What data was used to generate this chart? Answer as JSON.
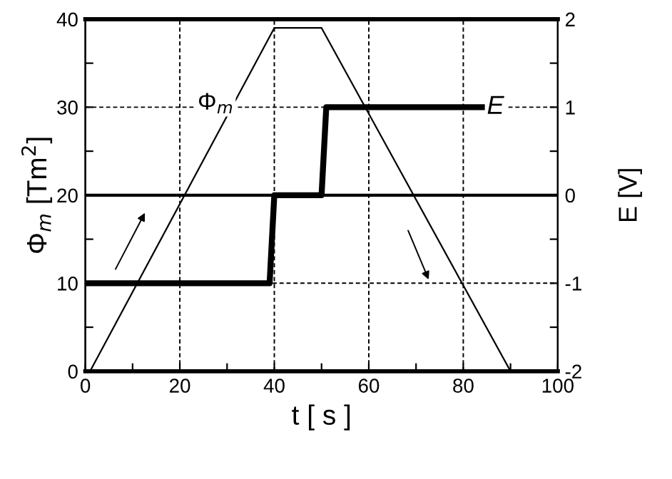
{
  "chart_data": {
    "type": "line",
    "xlabel": "t [ s ]",
    "ylabel": "Φ$_{m}$ [Tm$^{2}$]",
    "y2label": "E [V]",
    "series": [
      {
        "name": "Φ$_{m}$",
        "color": "#000000",
        "x": [
          1,
          40,
          50,
          90
        ],
        "values": [
          0,
          39,
          39,
          0
        ]
      },
      {
        "name": "E",
        "color": "#000000",
        "axis": "y2",
        "type": "step",
        "x": [
          0,
          39,
          40,
          50,
          51,
          84
        ],
        "values": [
          -1,
          -1,
          0,
          0,
          1,
          1
        ]
      }
    ],
    "xlim": [
      0,
      100
    ],
    "xticks": [
      0,
      {
        "value": 10,
        "label": null
      },
      20,
      {
        "value": 30,
        "label": null
      },
      40,
      {
        "value": 50,
        "label": null
      },
      60,
      {
        "value": 70,
        "label": null
      },
      80,
      {
        "value": 90,
        "label": null
      },
      100
    ],
    "ylim": [
      0,
      40
    ],
    "yticks": [
      0,
      {
        "value": 5,
        "label": null
      },
      10,
      {
        "value": 15,
        "label": null
      },
      20,
      {
        "value": 25,
        "label": null
      },
      30,
      {
        "value": 35,
        "label": null
      },
      40
    ],
    "y2lim": [
      -2,
      2
    ],
    "y2ticks": [
      -2,
      {
        "value": -1.5,
        "label": null
      },
      -1,
      {
        "value": -0.5,
        "label": null
      },
      0,
      {
        "value": 0.5,
        "label": null
      },
      1,
      {
        "value": 1.5,
        "label": null
      },
      2
    ],
    "ref_lines": [
      {
        "axis": "y2",
        "value": 0,
        "color": "#000000",
        "line_style": "solid"
      }
    ],
    "grid": true,
    "legend": false
  }
}
